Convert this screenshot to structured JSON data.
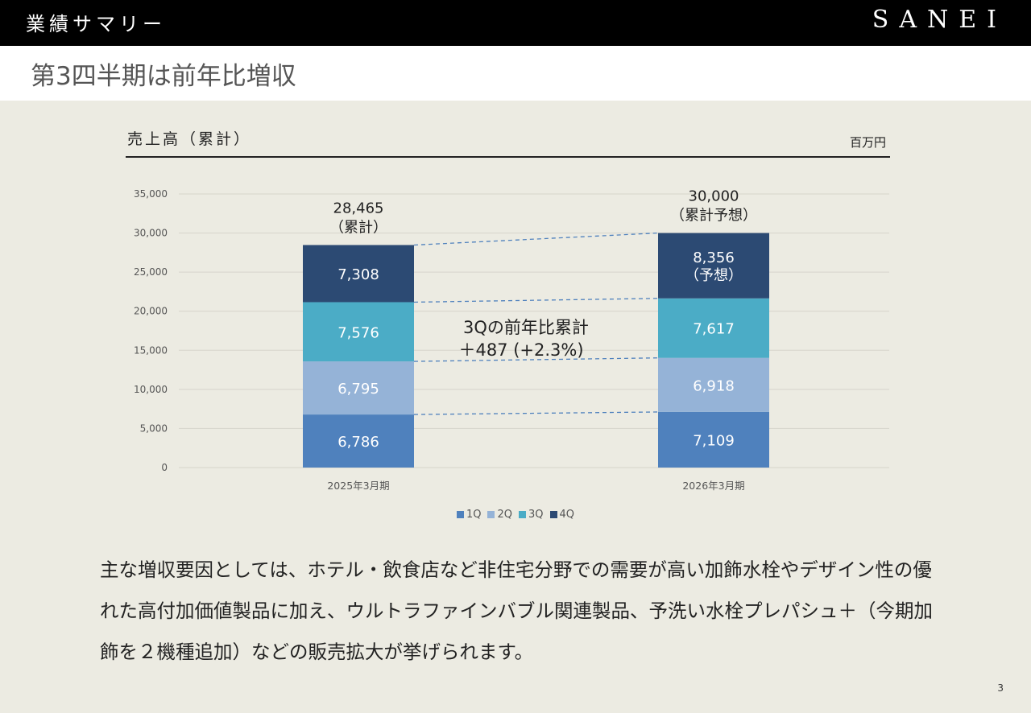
{
  "header": {
    "section_title": "業績サマリー",
    "brand": "SANEI"
  },
  "headline": "第3四半期は前年比増収",
  "chart_data": {
    "type": "bar",
    "stacked": true,
    "title": "売上高（累計）",
    "unit": "百万円",
    "categories": [
      "2025年3月期",
      "2026年3月期"
    ],
    "series": [
      {
        "name": "1Q",
        "values": [
          6786,
          7109
        ],
        "color": "#4f81bd",
        "label_color": "#ffffff"
      },
      {
        "name": "2Q",
        "values": [
          6795,
          6918
        ],
        "color": "#95b3d7",
        "label_color": "#ffffff"
      },
      {
        "name": "3Q",
        "values": [
          7576,
          7617
        ],
        "color": "#4bacc6",
        "label_color": "#ffffff"
      },
      {
        "name": "4Q",
        "values": [
          7308,
          8356
        ],
        "color": "#2c4a73",
        "label_color": "#ffffff"
      }
    ],
    "segment_labels": [
      [
        "6,786",
        "7,109"
      ],
      [
        "6,795",
        "6,918"
      ],
      [
        "7,576",
        "7,617"
      ],
      [
        "7,308",
        "8,356"
      ]
    ],
    "segment_notes": [
      [
        "",
        ""
      ],
      [
        "",
        ""
      ],
      [
        "",
        ""
      ],
      [
        "",
        "（予想）"
      ]
    ],
    "totals": [
      {
        "value": "28,465",
        "note": "（累計）"
      },
      {
        "value": "30,000",
        "note": "（累計予想）"
      }
    ],
    "ylim": [
      0,
      35000
    ],
    "yticks": [
      0,
      5000,
      10000,
      15000,
      20000,
      25000,
      30000,
      35000
    ],
    "ytick_labels": [
      "0",
      "5,000",
      "10,000",
      "15,000",
      "20,000",
      "25,000",
      "30,000",
      "35,000"
    ],
    "grid": true,
    "legend_position": "bottom",
    "annotation": {
      "line1": "3Qの前年比累計",
      "line2": "＋487 (+2.3%)"
    }
  },
  "body_text": "主な増収要因としては、ホテル・飲食店など非住宅分野での需要が高い加飾水栓やデザイン性の優れた高付加価値製品に加え、ウルトラファインバブル関連製品、予洗い水栓プレパシュ＋（今期加飾を２機種追加）などの販売拡大が挙げられます。",
  "page_number": "3"
}
